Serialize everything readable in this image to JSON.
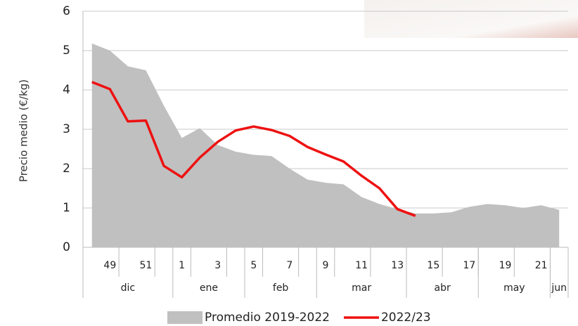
{
  "chart_data": {
    "type": "area-line",
    "ylabel": "Precio medio (€/kg)",
    "categories": [
      null,
      "49",
      null,
      "51",
      null,
      "1",
      null,
      "3",
      null,
      "5",
      null,
      "7",
      null,
      "9",
      null,
      "11",
      null,
      "13",
      null,
      "15",
      null,
      "17",
      null,
      "19",
      null,
      "21",
      null
    ],
    "months": [
      {
        "label": "dic",
        "count": 5
      },
      {
        "label": "ene",
        "count": 4
      },
      {
        "label": "feb",
        "count": 4
      },
      {
        "label": "mar",
        "count": 5
      },
      {
        "label": "abr",
        "count": 4
      },
      {
        "label": "may",
        "count": 4
      },
      {
        "label": "jun",
        "count": 1
      }
    ],
    "series": [
      {
        "name": "Promedio 2019-2022",
        "kind": "area",
        "color": "#c0c0c0",
        "values": [
          5.18,
          5.0,
          4.6,
          4.5,
          3.6,
          2.78,
          3.03,
          2.6,
          2.43,
          2.35,
          2.32,
          2.0,
          1.72,
          1.64,
          1.6,
          1.28,
          1.1,
          0.97,
          0.86,
          0.86,
          0.89,
          1.03,
          1.1,
          1.07,
          1.0,
          1.07,
          0.95
        ]
      },
      {
        "name": "2022/23",
        "kind": "line",
        "color": "#ee1111",
        "values": [
          4.2,
          4.02,
          3.2,
          3.22,
          2.07,
          1.78,
          2.28,
          2.68,
          2.97,
          3.07,
          2.98,
          2.83,
          2.55,
          2.36,
          2.18,
          1.82,
          1.5,
          0.97,
          0.8,
          null,
          null,
          null,
          null,
          null,
          null,
          null,
          null
        ]
      }
    ],
    "ylim": [
      0,
      6
    ],
    "yticks": [
      0,
      1,
      2,
      3,
      4,
      5,
      6
    ],
    "grid": true
  }
}
